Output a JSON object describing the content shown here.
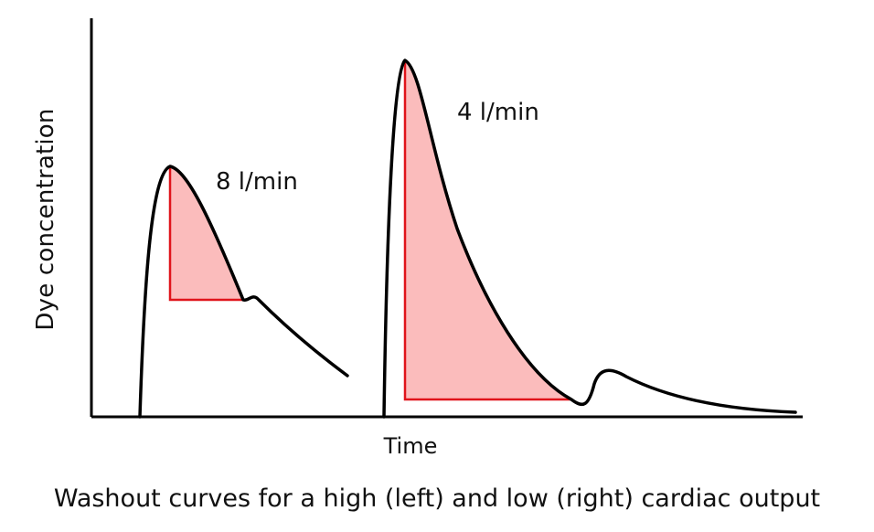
{
  "chart_data": {
    "type": "line",
    "title": "Washout curves for a high (left) and low (right) cardiac output",
    "xlabel": "Time",
    "ylabel": "Dye concentration",
    "grid": false,
    "legend": "none",
    "series": [
      {
        "name": "8 l/min",
        "color": "#000000",
        "fill_color": "#fbbcbc",
        "triangle_color": "#e0141b"
      },
      {
        "name": "4 l/min",
        "color": "#000000",
        "fill_color": "#fbbcbc",
        "triangle_color": "#e0141b"
      }
    ]
  }
}
